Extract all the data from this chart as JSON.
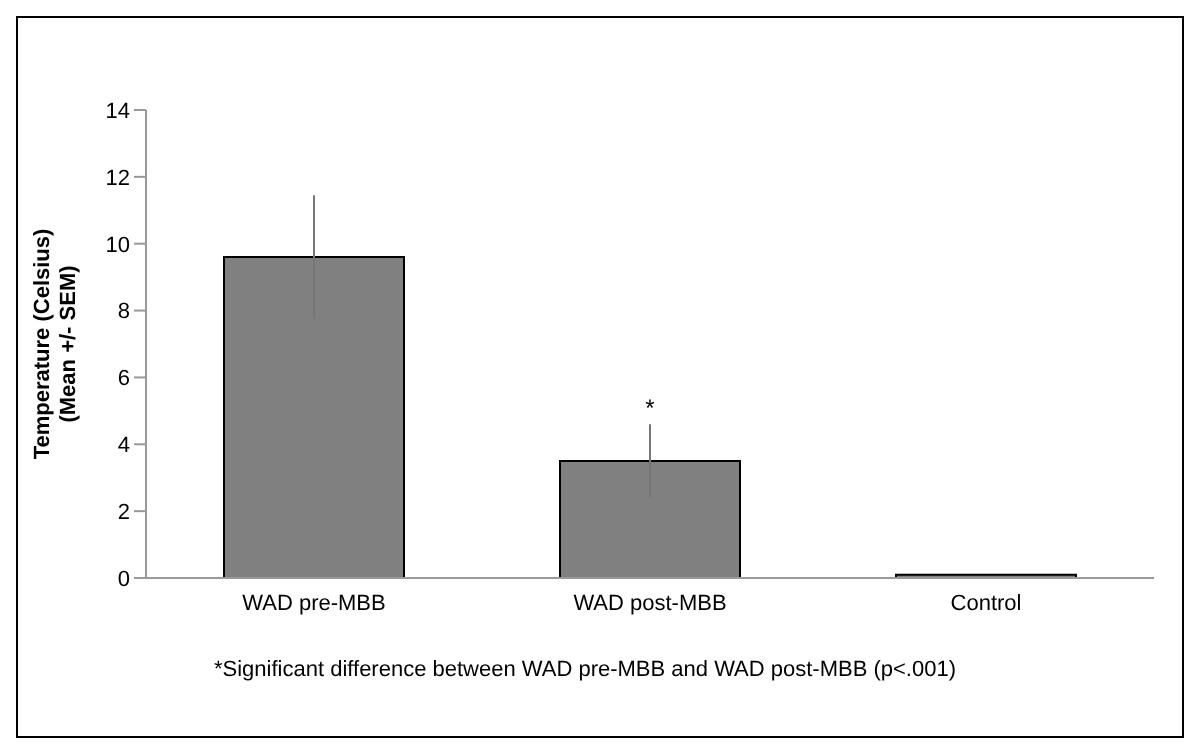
{
  "chart_data": {
    "type": "bar",
    "ylabel": "Temperature (Celsius)\n(Mean +/- SEM)",
    "categories": [
      "WAD pre-MBB",
      "WAD post-MBB",
      "Control"
    ],
    "values": [
      9.6,
      3.5,
      0.1
    ],
    "color": "#808080",
    "errors": [
      1.85,
      1.1,
      null
    ],
    "ylim": [
      0,
      14
    ],
    "yticks": [
      0,
      2,
      4,
      6,
      8,
      10,
      12,
      14
    ],
    "grid": false,
    "legend": false,
    "annotations": [
      {
        "text": "*",
        "x": "WAD post-MBB",
        "y": 4.6
      },
      "*Significant difference between WAD pre-MBB and WAD post-MBB (p<.001)"
    ]
  }
}
